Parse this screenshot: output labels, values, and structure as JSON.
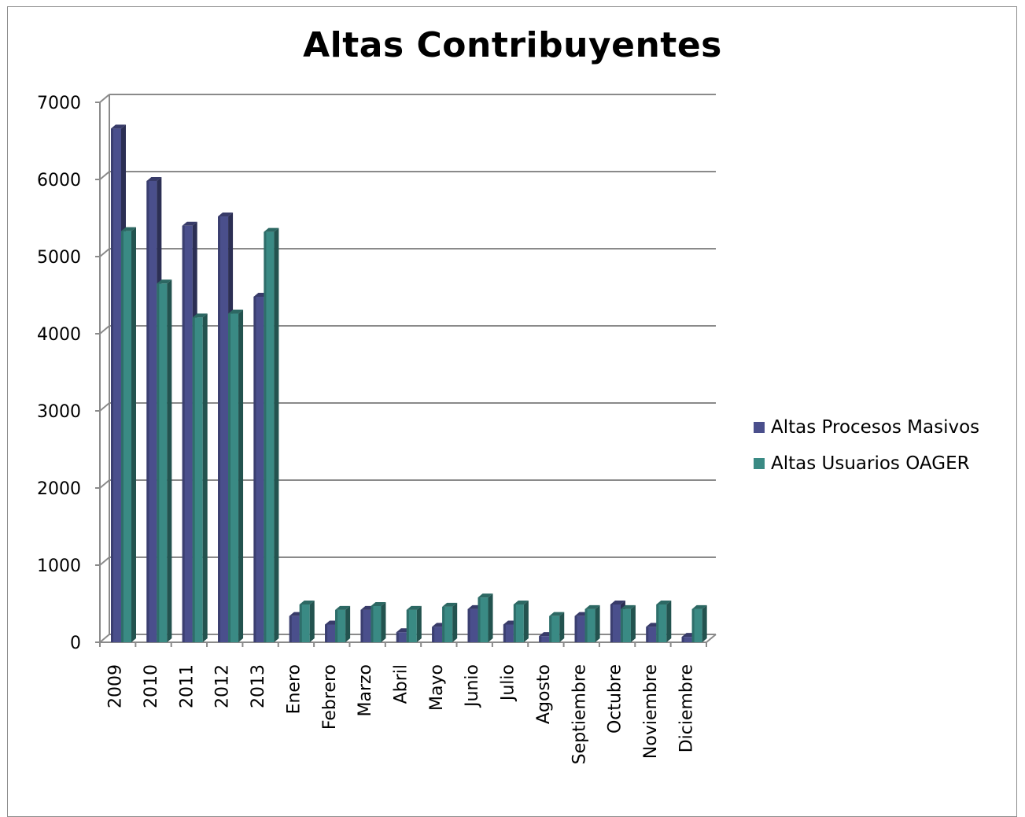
{
  "chart_data": {
    "type": "bar",
    "title": "Altas Contribuyentes",
    "xlabel": "",
    "ylabel": "",
    "ylim": [
      0,
      7000
    ],
    "yticks": [
      0,
      1000,
      2000,
      3000,
      4000,
      5000,
      6000,
      7000
    ],
    "grid": true,
    "legend_position": "right",
    "categories": [
      "2009",
      "2010",
      "2011",
      "2012",
      "2013",
      "Enero",
      "Febrero",
      "Marzo",
      "Abril",
      "Mayo",
      "Junio",
      "Julio",
      "Agosto",
      "Septiembre",
      "Octubre",
      "Noviembre",
      "Diciembre"
    ],
    "series": [
      {
        "name": "Altas Procesos Masivos",
        "color": "#4a4f8c",
        "values": [
          6660,
          5980,
          5400,
          5520,
          4480,
          340,
          230,
          420,
          130,
          200,
          430,
          230,
          80,
          340,
          490,
          200,
          70
        ]
      },
      {
        "name": "Altas Usuarios OAGER",
        "color": "#3a8a84",
        "values": [
          5330,
          4650,
          4210,
          4260,
          5320,
          490,
          420,
          470,
          420,
          460,
          580,
          490,
          340,
          430,
          430,
          490,
          430
        ]
      }
    ]
  }
}
